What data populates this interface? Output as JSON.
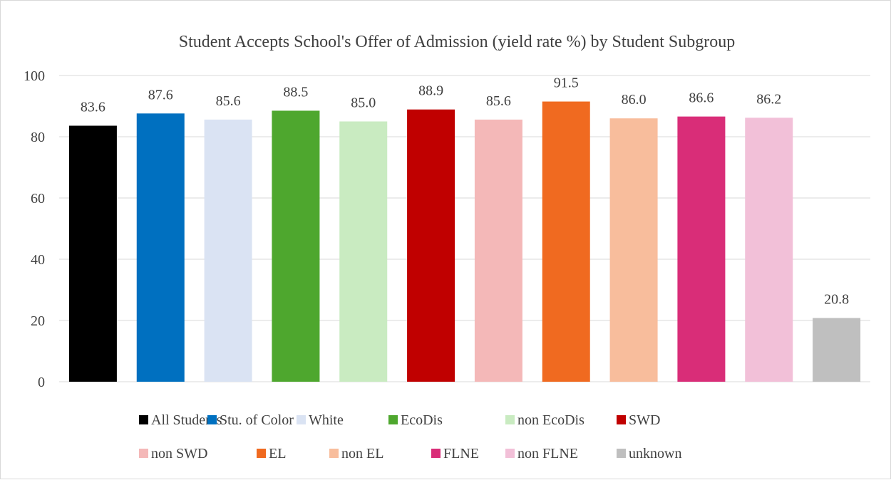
{
  "chart_data": {
    "type": "bar",
    "title": "Student Accepts School's Offer of Admission (yield rate %) by Student Subgroup",
    "xlabel": "",
    "ylabel": "",
    "ylim": [
      0,
      100
    ],
    "yticks": [
      0,
      20,
      40,
      60,
      80,
      100
    ],
    "grid": true,
    "legend_position": "bottom",
    "categories": [
      "All Students",
      "Stu. of Color",
      "White",
      "EcoDis",
      "non EcoDis",
      "SWD",
      "non SWD",
      "EL",
      "non EL",
      "FLNE",
      "non FLNE",
      "unknown"
    ],
    "values": [
      83.6,
      87.6,
      85.6,
      88.5,
      85.0,
      88.9,
      85.6,
      91.5,
      86.0,
      86.6,
      86.2,
      20.8
    ],
    "value_labels": [
      "83.6",
      "87.6",
      "85.6",
      "88.5",
      "85.0",
      "88.9",
      "85.6",
      "91.5",
      "86.0",
      "86.6",
      "86.2",
      "20.8"
    ],
    "colors": [
      "#000000",
      "#0070c0",
      "#dae3f3",
      "#4ea72e",
      "#c9ebc1",
      "#c00000",
      "#f4b8b8",
      "#f06a20",
      "#f8bd9c",
      "#d92d78",
      "#f2c0d8",
      "#bfbfbf"
    ]
  }
}
